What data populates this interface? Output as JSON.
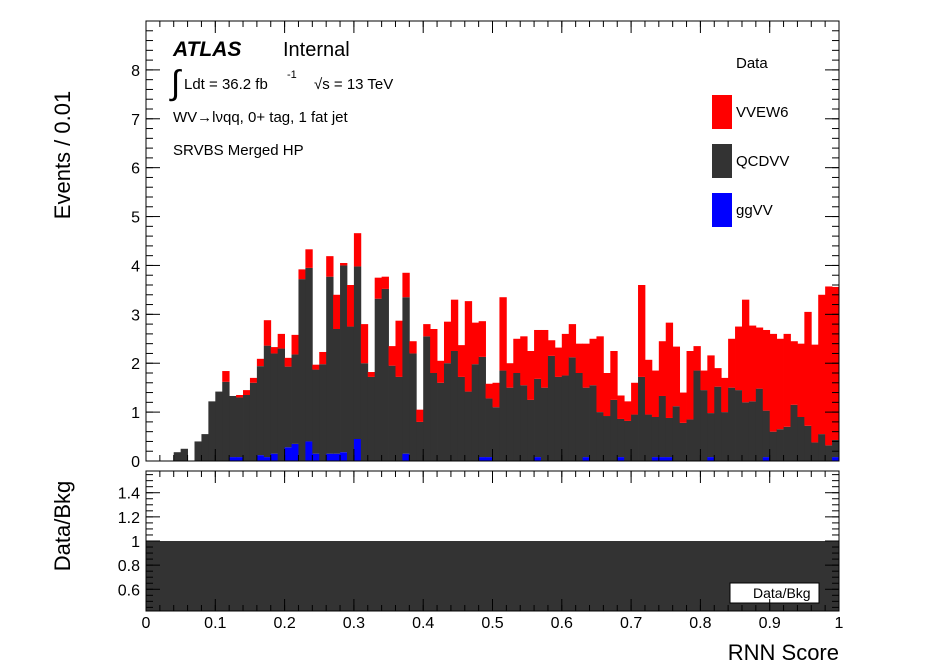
{
  "atlas": {
    "brand": "ATLAS",
    "status": "Internal"
  },
  "lumi": {
    "integral": "∫",
    "text": "Ldt = 36.2 fb",
    "sup": "-1",
    "energy": "√s = 13 TeV"
  },
  "channel": "WV→lνqq, 0+ tag, 1 fat jet",
  "region": "SRVBS Merged HP",
  "legend": {
    "entries": [
      {
        "label": "Data",
        "color": null
      },
      {
        "label": "VVEW6",
        "color": "#ff0000"
      },
      {
        "label": "QCDVV",
        "color": "#333333"
      },
      {
        "label": "ggVV",
        "color": "#0000ff"
      }
    ]
  },
  "ratio_legend": "Data/Bkg",
  "chart_data": [
    {
      "type": "bar",
      "stacked": true,
      "ylabel": "Events / 0.01",
      "xlim": [
        0,
        1
      ],
      "ylim": [
        0,
        9
      ],
      "yticks": [
        0,
        1,
        2,
        3,
        4,
        5,
        6,
        7,
        8
      ],
      "bin_width": 0.01,
      "x_start": 0.0,
      "series": [
        {
          "name": "ggVV",
          "color": "#0000ff",
          "values": [
            0,
            0,
            0,
            0,
            0,
            0,
            0,
            0,
            0,
            0,
            0,
            0,
            0.08,
            0.08,
            0,
            0,
            0.12,
            0.08,
            0.15,
            0,
            0.28,
            0.35,
            0,
            0.4,
            0.15,
            0,
            0.15,
            0.15,
            0.18,
            0,
            0.45,
            0,
            0,
            0,
            0,
            0,
            0,
            0.15,
            0,
            0,
            0,
            0,
            0,
            0,
            0,
            0,
            0,
            0,
            0.08,
            0.08,
            0,
            0,
            0,
            0,
            0,
            0,
            0.08,
            0,
            0,
            0,
            0,
            0,
            0,
            0.08,
            0,
            0,
            0,
            0,
            0.08,
            0,
            0,
            0,
            0,
            0.08,
            0.08,
            0.08,
            0,
            0,
            0,
            0,
            0,
            0.08,
            0,
            0,
            0,
            0,
            0,
            0,
            0,
            0.08,
            0,
            0,
            0,
            0,
            0,
            0,
            0,
            0,
            0,
            0.08
          ]
        },
        {
          "name": "QCDVV",
          "color": "#333333",
          "values": [
            0,
            0,
            0,
            0,
            0.18,
            0.25,
            0,
            0.4,
            0.55,
            1.22,
            1.42,
            1.62,
            1.25,
            1.22,
            1.35,
            1.6,
            1.82,
            2.28,
            2.05,
            2.3,
            1.65,
            1.83,
            3.72,
            3.55,
            1.72,
            1.98,
            3.62,
            2.55,
            3.82,
            2.75,
            3.53,
            2.0,
            1.72,
            3.32,
            3.52,
            1.95,
            1.72,
            3.2,
            2.2,
            0.8,
            2.55,
            1.8,
            1.6,
            2.0,
            2.25,
            1.72,
            1.42,
            1.98,
            2.05,
            1.2,
            1.1,
            1.85,
            1.5,
            1.8,
            1.55,
            1.25,
            1.6,
            1.5,
            2.15,
            1.72,
            1.75,
            2.12,
            1.8,
            1.42,
            1.55,
            1.0,
            0.92,
            1.25,
            0.78,
            0.82,
            0.95,
            1.72,
            0.95,
            0.82,
            1.25,
            0.8,
            1.12,
            0.78,
            0.85,
            1.85,
            1.45,
            0.9,
            1.52,
            1.0,
            1.5,
            1.45,
            1.2,
            1.22,
            1.48,
            0.95,
            0.6,
            0.65,
            0.7,
            1.15,
            0.9,
            0.72,
            0.38,
            0.55,
            0.32,
            0.35
          ]
        },
        {
          "name": "VVEW6",
          "color": "#ff0000",
          "values": [
            0,
            0,
            0,
            0,
            0,
            0,
            0,
            0,
            0,
            0,
            0,
            0.22,
            0,
            0.05,
            0.1,
            0.1,
            0.15,
            0.52,
            0.13,
            0.3,
            0.18,
            0.4,
            0.2,
            0.38,
            0.1,
            0.25,
            0.42,
            0.7,
            0.05,
            0.85,
            0.68,
            0.8,
            0.1,
            0.43,
            0.25,
            0.4,
            1.15,
            0.5,
            0.25,
            0.25,
            0.25,
            0.9,
            0.45,
            0.85,
            1.05,
            0.65,
            1.85,
            0.85,
            0.73,
            0.3,
            0.5,
            1.5,
            0.5,
            0.7,
            1.0,
            1.0,
            1.0,
            1.18,
            0.32,
            0.6,
            0.85,
            0.68,
            0.6,
            0.9,
            0.95,
            1.55,
            0.88,
            1.0,
            0.48,
            0.4,
            0.65,
            1.88,
            1.12,
            0.95,
            1.12,
            1.95,
            1.22,
            0.62,
            1.4,
            0.5,
            0.4,
            1.18,
            0.38,
            0.7,
            1.0,
            1.3,
            2.1,
            1.55,
            1.25,
            1.65,
            2.0,
            1.85,
            1.9,
            1.3,
            1.5,
            2.33,
            2.0,
            2.85,
            3.25,
            3.13
          ]
        }
      ]
    },
    {
      "type": "bar",
      "ylabel": "Data/Bkg",
      "xlabel": "RNN Score",
      "xlim": [
        0,
        1
      ],
      "ylim": [
        0.42,
        1.58
      ],
      "yticks": [
        0.6,
        0.8,
        1,
        1.2,
        1.4
      ],
      "xticks": [
        0,
        0.1,
        0.2,
        0.3,
        0.4,
        0.5,
        0.6,
        0.7,
        0.8,
        0.9,
        1
      ],
      "bands": [
        {
          "name": "Data/Bkg",
          "from": 0.42,
          "to": 1.0,
          "color": "#333333"
        }
      ]
    }
  ]
}
